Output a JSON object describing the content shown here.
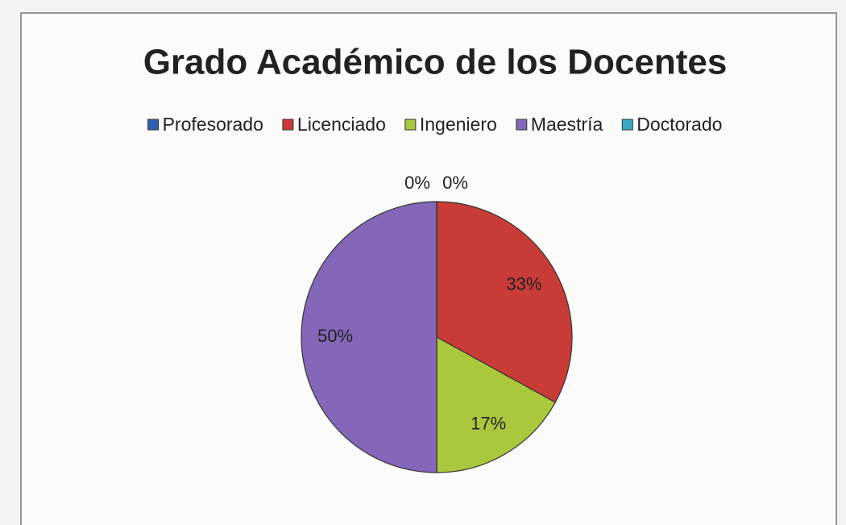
{
  "chart_data": {
    "type": "pie",
    "title": "Grado Académico de los Docentes",
    "categories": [
      "Profesorado",
      "Licenciado",
      "Ingeniero",
      "Maestría",
      "Doctorado"
    ],
    "values": [
      0,
      33,
      17,
      50,
      0
    ],
    "value_labels": [
      "0%",
      "33%",
      "17%",
      "50%",
      "0%"
    ],
    "colors": [
      "#2d5fb0",
      "#c93b36",
      "#a9c83c",
      "#8467b8",
      "#3ba8c8"
    ],
    "legend": "top"
  }
}
